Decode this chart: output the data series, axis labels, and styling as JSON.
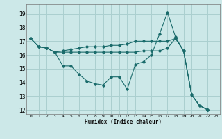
{
  "bg_color": "#cce8e8",
  "grid_color": "#aacfcf",
  "line_color": "#1a6b6b",
  "xlabel": "Humidex (Indice chaleur)",
  "ylim": [
    11.7,
    19.7
  ],
  "xlim": [
    -0.5,
    23.5
  ],
  "yticks": [
    12,
    13,
    14,
    15,
    16,
    17,
    18,
    19
  ],
  "xticks": [
    0,
    1,
    2,
    3,
    4,
    5,
    6,
    7,
    8,
    9,
    10,
    11,
    12,
    13,
    14,
    15,
    16,
    17,
    18,
    19,
    20,
    21,
    22,
    23
  ],
  "series": [
    {
      "x": [
        0,
        1,
        2,
        3,
        4,
        5,
        6,
        7,
        8,
        9,
        10,
        11,
        12,
        13,
        14,
        15,
        16,
        17,
        18,
        19,
        20,
        21,
        22
      ],
      "y": [
        17.2,
        16.6,
        16.5,
        16.2,
        15.2,
        15.2,
        14.6,
        14.1,
        13.9,
        13.8,
        14.4,
        14.4,
        13.5,
        15.3,
        15.5,
        16.0,
        17.5,
        19.1,
        17.3,
        16.3,
        13.1,
        12.3,
        12.0
      ]
    },
    {
      "x": [
        0,
        1,
        2,
        3,
        4,
        5,
        6,
        7,
        8,
        9,
        10,
        11,
        12,
        13,
        14,
        15,
        16,
        17,
        18,
        19,
        20,
        21,
        22
      ],
      "y": [
        17.2,
        16.6,
        16.5,
        16.2,
        16.3,
        16.4,
        16.5,
        16.6,
        16.6,
        16.6,
        16.7,
        16.7,
        16.8,
        17.0,
        17.0,
        17.0,
        17.0,
        17.0,
        17.2,
        16.3,
        13.1,
        12.3,
        12.0
      ]
    },
    {
      "x": [
        0,
        1,
        2,
        3,
        4,
        5,
        6,
        7,
        8,
        9,
        10,
        11,
        12,
        13,
        14,
        15,
        16,
        17,
        18,
        19,
        20,
        21,
        22
      ],
      "y": [
        17.2,
        16.6,
        16.5,
        16.2,
        16.2,
        16.2,
        16.2,
        16.2,
        16.2,
        16.2,
        16.2,
        16.2,
        16.2,
        16.2,
        16.3,
        16.3,
        16.3,
        16.5,
        17.2,
        16.3,
        13.1,
        12.3,
        12.0
      ]
    }
  ]
}
